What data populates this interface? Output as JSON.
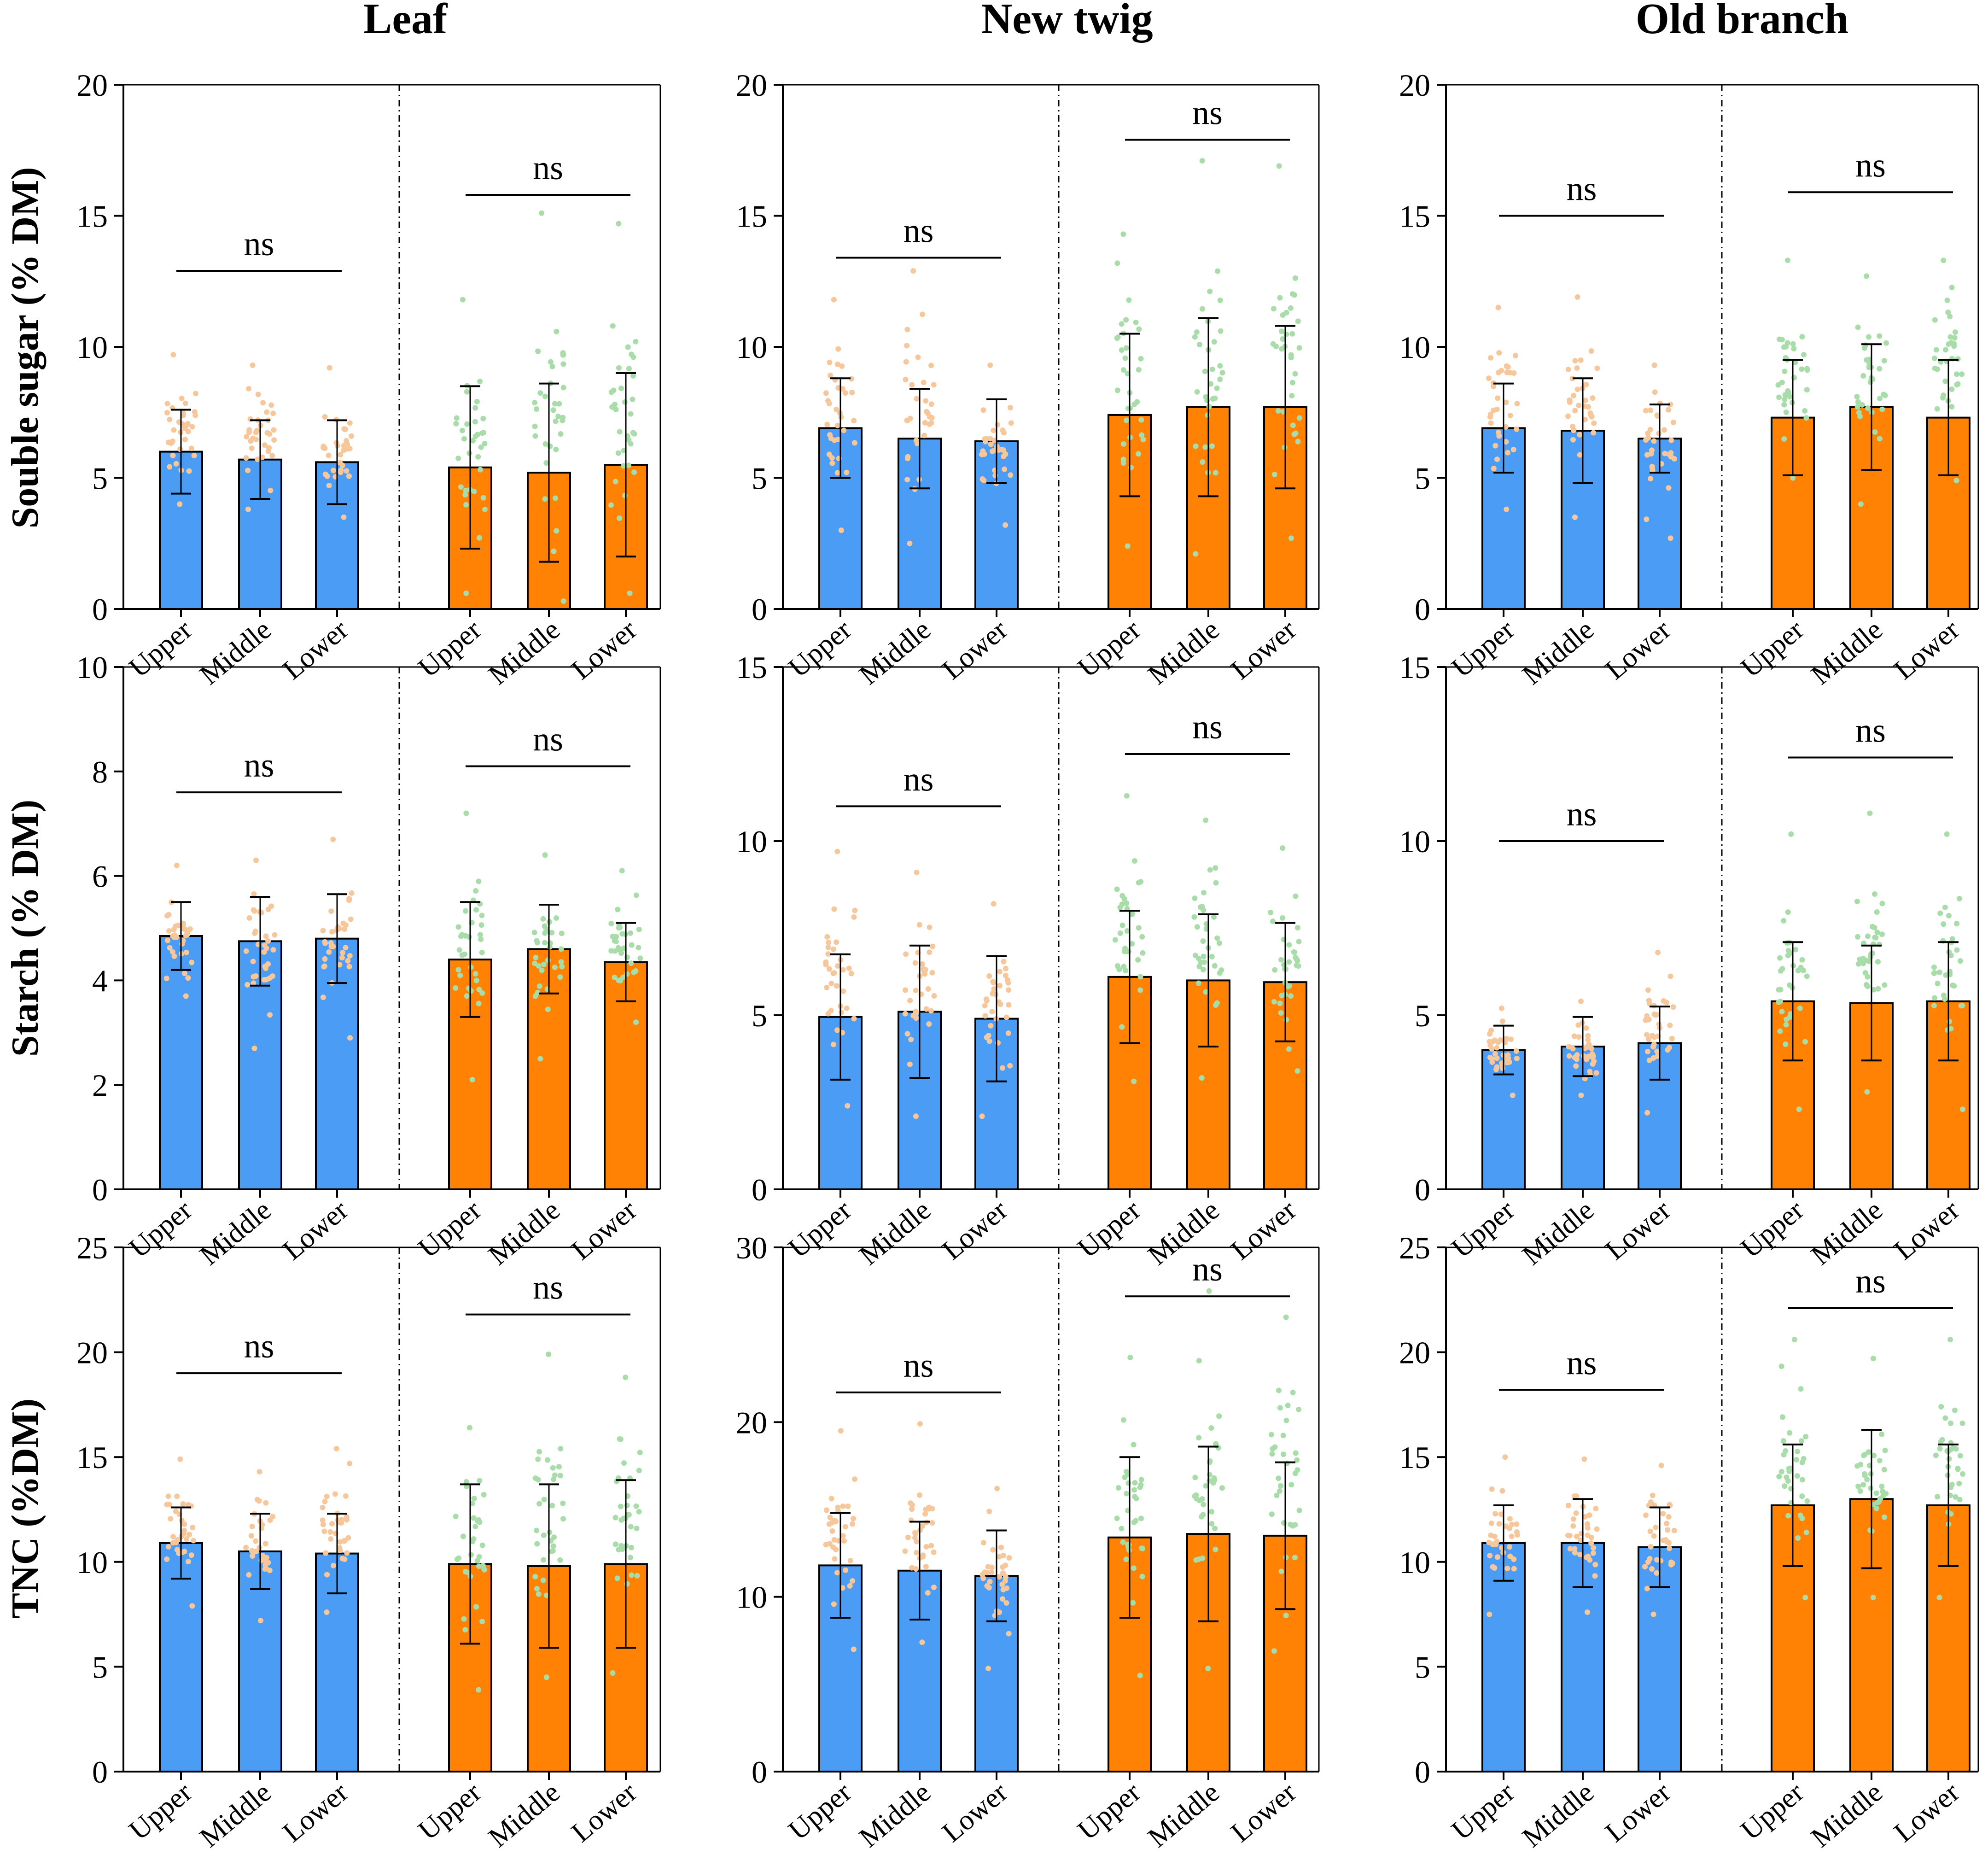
{
  "figure": {
    "column_titles": [
      "Leaf",
      "New twig",
      "Old branch"
    ],
    "row_labels": [
      "Souble sugar (% DM)",
      "Starch (% DM)",
      "TNC (%DM)"
    ],
    "colors": {
      "group1_bar": "#4a9cf5",
      "group2_bar": "#ff8205",
      "group1_dots": "#f7c79c",
      "group2_dots": "#a8dca8",
      "axis": "#000000"
    },
    "categories": [
      "Upper",
      "Middle",
      "Lower",
      "Upper",
      "Middle",
      "Lower"
    ],
    "significance_label": "ns"
  },
  "chart_data": [
    {
      "type": "bar",
      "row": 0,
      "col": 0,
      "column_title": "Leaf",
      "ylabel": "Souble sugar (% DM)",
      "ylim": [
        0,
        20
      ],
      "yticks": [
        0,
        5,
        10,
        15,
        20
      ],
      "categories": [
        "Upper",
        "Middle",
        "Lower",
        "Upper",
        "Middle",
        "Lower"
      ],
      "values": [
        6.0,
        5.7,
        5.6,
        5.4,
        5.2,
        5.5
      ],
      "sd": [
        1.6,
        1.5,
        1.6,
        3.1,
        3.4,
        3.5
      ],
      "point_spread": [
        [
          4.0,
          9.7
        ],
        [
          3.8,
          9.3
        ],
        [
          3.5,
          9.2
        ],
        [
          0.6,
          11.8
        ],
        [
          0.3,
          15.1
        ],
        [
          0.6,
          14.7
        ]
      ],
      "annotations": [
        {
          "group": 1,
          "text": "ns",
          "y": 12.9
        },
        {
          "group": 2,
          "text": "ns",
          "y": 15.8
        }
      ]
    },
    {
      "type": "bar",
      "row": 0,
      "col": 1,
      "column_title": "New twig",
      "ylabel": "",
      "ylim": [
        0,
        20
      ],
      "yticks": [
        0,
        5,
        10,
        15,
        20
      ],
      "categories": [
        "Upper",
        "Middle",
        "Lower",
        "Upper",
        "Middle",
        "Lower"
      ],
      "values": [
        6.9,
        6.5,
        6.4,
        7.4,
        7.7,
        7.7
      ],
      "sd": [
        1.9,
        1.9,
        1.6,
        3.1,
        3.4,
        3.1
      ],
      "point_spread": [
        [
          3.0,
          11.8
        ],
        [
          2.5,
          12.9
        ],
        [
          3.2,
          9.3
        ],
        [
          2.4,
          14.3
        ],
        [
          2.1,
          17.1
        ],
        [
          2.7,
          16.9
        ]
      ],
      "annotations": [
        {
          "group": 1,
          "text": "ns",
          "y": 13.4
        },
        {
          "group": 2,
          "text": "ns",
          "y": 17.9
        }
      ]
    },
    {
      "type": "bar",
      "row": 0,
      "col": 2,
      "column_title": "Old branch",
      "ylabel": "",
      "ylim": [
        0,
        20
      ],
      "yticks": [
        0,
        5,
        10,
        15,
        20
      ],
      "categories": [
        "Upper",
        "Middle",
        "Lower",
        "Upper",
        "Middle",
        "Lower"
      ],
      "values": [
        6.9,
        6.8,
        6.5,
        7.3,
        7.7,
        7.3
      ],
      "sd": [
        1.7,
        2.0,
        1.3,
        2.2,
        2.4,
        2.2
      ],
      "point_spread": [
        [
          3.8,
          11.5
        ],
        [
          3.5,
          11.9
        ],
        [
          2.7,
          9.3
        ],
        [
          5.0,
          13.3
        ],
        [
          4.0,
          12.7
        ],
        [
          4.9,
          13.3
        ]
      ],
      "annotations": [
        {
          "group": 1,
          "text": "ns",
          "y": 15.0
        },
        {
          "group": 2,
          "text": "ns",
          "y": 15.9
        }
      ]
    },
    {
      "type": "bar",
      "row": 1,
      "col": 0,
      "column_title": "Leaf",
      "ylabel": "Starch (% DM)",
      "ylim": [
        0,
        10
      ],
      "yticks": [
        0,
        2,
        4,
        6,
        8,
        10
      ],
      "categories": [
        "Upper",
        "Middle",
        "Lower",
        "Upper",
        "Middle",
        "Lower"
      ],
      "values": [
        4.85,
        4.75,
        4.8,
        4.4,
        4.6,
        4.35
      ],
      "sd": [
        0.65,
        0.85,
        0.85,
        1.1,
        0.85,
        0.75
      ],
      "point_spread": [
        [
          3.7,
          6.2
        ],
        [
          2.7,
          6.3
        ],
        [
          2.9,
          6.7
        ],
        [
          2.1,
          7.2
        ],
        [
          2.5,
          6.4
        ],
        [
          3.2,
          6.1
        ]
      ],
      "annotations": [
        {
          "group": 1,
          "text": "ns",
          "y": 7.6
        },
        {
          "group": 2,
          "text": "ns",
          "y": 8.1
        }
      ]
    },
    {
      "type": "bar",
      "row": 1,
      "col": 1,
      "column_title": "New twig",
      "ylabel": "",
      "ylim": [
        0,
        15
      ],
      "yticks": [
        0,
        5,
        10,
        15
      ],
      "categories": [
        "Upper",
        "Middle",
        "Lower",
        "Upper",
        "Middle",
        "Lower"
      ],
      "values": [
        4.95,
        5.1,
        4.9,
        6.1,
        6.0,
        5.95
      ],
      "sd": [
        1.8,
        1.9,
        1.8,
        1.9,
        1.9,
        1.7
      ],
      "point_spread": [
        [
          2.4,
          9.7
        ],
        [
          2.1,
          9.1
        ],
        [
          2.1,
          8.2
        ],
        [
          3.1,
          11.3
        ],
        [
          3.2,
          10.6
        ],
        [
          3.4,
          9.8
        ]
      ],
      "annotations": [
        {
          "group": 1,
          "text": "ns",
          "y": 11.0
        },
        {
          "group": 2,
          "text": "ns",
          "y": 12.5
        }
      ]
    },
    {
      "type": "bar",
      "row": 1,
      "col": 2,
      "column_title": "Old branch",
      "ylabel": "",
      "ylim": [
        0,
        15
      ],
      "yticks": [
        0,
        5,
        10,
        15
      ],
      "categories": [
        "Upper",
        "Middle",
        "Lower",
        "Upper",
        "Middle",
        "Lower"
      ],
      "values": [
        4.0,
        4.1,
        4.2,
        5.4,
        5.35,
        5.4
      ],
      "sd": [
        0.7,
        0.85,
        1.05,
        1.7,
        1.65,
        1.7
      ],
      "point_spread": [
        [
          2.7,
          5.2
        ],
        [
          2.7,
          5.4
        ],
        [
          2.2,
          6.8
        ],
        [
          2.3,
          10.2
        ],
        [
          2.8,
          10.8
        ],
        [
          2.3,
          10.2
        ]
      ],
      "annotations": [
        {
          "group": 1,
          "text": "ns",
          "y": 10.0
        },
        {
          "group": 2,
          "text": "ns",
          "y": 12.4
        }
      ]
    },
    {
      "type": "bar",
      "row": 2,
      "col": 0,
      "column_title": "Leaf",
      "ylabel": "TNC (%DM)",
      "ylim": [
        0,
        25
      ],
      "yticks": [
        0,
        5,
        10,
        15,
        20,
        25
      ],
      "categories": [
        "Upper",
        "Middle",
        "Lower",
        "Upper",
        "Middle",
        "Lower"
      ],
      "values": [
        10.9,
        10.5,
        10.4,
        9.9,
        9.8,
        9.9
      ],
      "sd": [
        1.7,
        1.8,
        1.9,
        3.8,
        3.9,
        4.0
      ],
      "point_spread": [
        [
          7.9,
          14.9
        ],
        [
          7.2,
          14.3
        ],
        [
          7.6,
          15.4
        ],
        [
          3.9,
          16.4
        ],
        [
          4.5,
          19.9
        ],
        [
          4.7,
          18.8
        ]
      ],
      "annotations": [
        {
          "group": 1,
          "text": "ns",
          "y": 19.0
        },
        {
          "group": 2,
          "text": "ns",
          "y": 21.8
        }
      ]
    },
    {
      "type": "bar",
      "row": 2,
      "col": 1,
      "column_title": "New twig",
      "ylabel": "",
      "ylim": [
        0,
        30
      ],
      "yticks": [
        0,
        10,
        20,
        30
      ],
      "categories": [
        "Upper",
        "Middle",
        "Lower",
        "Upper",
        "Middle",
        "Lower"
      ],
      "values": [
        11.8,
        11.5,
        11.2,
        13.4,
        13.6,
        13.5
      ],
      "sd": [
        3.0,
        2.8,
        2.6,
        4.6,
        5.0,
        4.2
      ],
      "point_spread": [
        [
          7.0,
          19.5
        ],
        [
          7.4,
          19.9
        ],
        [
          5.9,
          16.2
        ],
        [
          5.5,
          23.7
        ],
        [
          5.9,
          27.5
        ],
        [
          6.9,
          26.0
        ]
      ],
      "annotations": [
        {
          "group": 1,
          "text": "ns",
          "y": 21.7
        },
        {
          "group": 2,
          "text": "ns",
          "y": 27.2
        }
      ]
    },
    {
      "type": "bar",
      "row": 2,
      "col": 2,
      "column_title": "Old branch",
      "ylabel": "",
      "ylim": [
        0,
        25
      ],
      "yticks": [
        0,
        5,
        10,
        15,
        20,
        25
      ],
      "categories": [
        "Upper",
        "Middle",
        "Lower",
        "Upper",
        "Middle",
        "Lower"
      ],
      "values": [
        10.9,
        10.9,
        10.7,
        12.7,
        13.0,
        12.7
      ],
      "sd": [
        1.8,
        2.1,
        1.9,
        2.9,
        3.3,
        2.9
      ],
      "point_spread": [
        [
          7.5,
          15.0
        ],
        [
          7.6,
          14.9
        ],
        [
          7.5,
          14.6
        ],
        [
          8.3,
          20.6
        ],
        [
          8.3,
          19.7
        ],
        [
          8.3,
          20.6
        ]
      ],
      "annotations": [
        {
          "group": 1,
          "text": "ns",
          "y": 18.2
        },
        {
          "group": 2,
          "text": "ns",
          "y": 22.1
        }
      ]
    }
  ]
}
